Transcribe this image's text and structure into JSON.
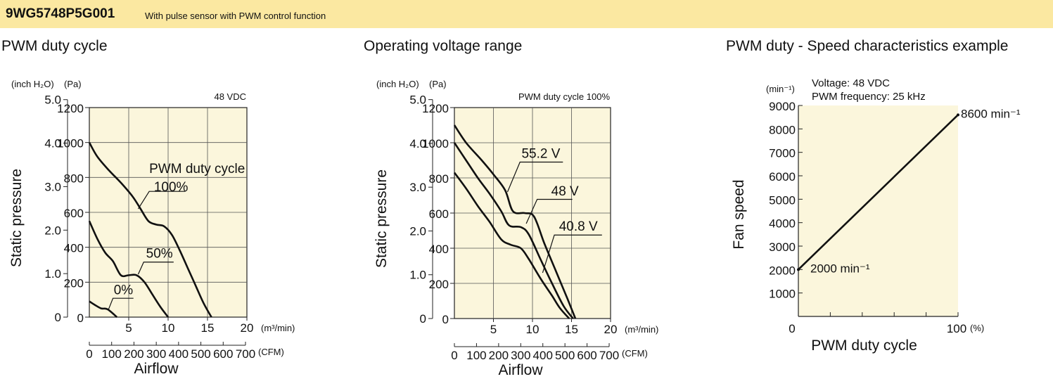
{
  "header": {
    "model": "9WG5748P5G001",
    "description": "With pulse sensor with PWM control function"
  },
  "chart_data": [
    {
      "type": "line",
      "title": "PWM duty cycle",
      "note": "48 VDC",
      "xlabel": "Airflow",
      "ylabel": "Static pressure",
      "x_unit_primary": "(m³/min)",
      "x_unit_secondary": "(CFM)",
      "y_unit_primary": "(Pa)",
      "y_unit_secondary": "(inch H₂O)",
      "xlim": [
        0,
        20
      ],
      "ylim": [
        0,
        1200
      ],
      "xticks": [
        "5",
        "10",
        "15",
        "20"
      ],
      "xticks_cfm": [
        "0",
        "100",
        "200",
        "300",
        "400",
        "500",
        "600",
        "700"
      ],
      "yticks": [
        "0",
        "200",
        "400",
        "600",
        "800",
        "1000",
        "1200"
      ],
      "yticks_inch": [
        "0",
        "1.0",
        "2.0",
        "3.0",
        "4.0",
        "5.0"
      ],
      "series_label": "PWM duty cycle",
      "series": [
        {
          "name": "100%",
          "x": [
            0,
            1,
            2.5,
            4,
            5.5,
            6.5,
            7.5,
            8.5,
            9.5,
            10.5,
            11.5,
            12.5,
            13.5,
            14.5,
            15.5
          ],
          "y": [
            1000,
            920,
            840,
            770,
            690,
            620,
            550,
            530,
            520,
            470,
            380,
            280,
            180,
            80,
            0
          ]
        },
        {
          "name": "50%",
          "x": [
            0,
            1,
            2,
            3,
            4,
            5,
            6,
            7,
            8,
            9,
            10
          ],
          "y": [
            550,
            450,
            370,
            320,
            240,
            240,
            240,
            200,
            130,
            60,
            0
          ]
        },
        {
          "name": "0%",
          "x": [
            0,
            0.7,
            1.5,
            2.3,
            3.5
          ],
          "y": [
            90,
            70,
            50,
            45,
            0
          ]
        }
      ]
    },
    {
      "type": "line",
      "title": "Operating voltage range",
      "note": "PWM duty cycle 100%",
      "xlabel": "Airflow",
      "ylabel": "Static pressure",
      "x_unit_primary": "(m³/min)",
      "x_unit_secondary": "(CFM)",
      "y_unit_primary": "(Pa)",
      "y_unit_secondary": "(inch H₂O)",
      "xlim": [
        0,
        20
      ],
      "ylim": [
        0,
        1200
      ],
      "xticks": [
        "5",
        "10",
        "15",
        "20"
      ],
      "xticks_cfm": [
        "0",
        "100",
        "200",
        "300",
        "400",
        "500",
        "600",
        "700"
      ],
      "yticks": [
        "0",
        "200",
        "400",
        "600",
        "800",
        "1000",
        "1200"
      ],
      "yticks_inch": [
        "0",
        "1.0",
        "2.0",
        "3.0",
        "4.0",
        "5.0"
      ],
      "series": [
        {
          "name": "55.2 V",
          "x": [
            0,
            1.5,
            3.5,
            5,
            6.5,
            7.5,
            9,
            10.2,
            11.5,
            13,
            14.5,
            15.5
          ],
          "y": [
            1100,
            1000,
            900,
            820,
            730,
            610,
            600,
            580,
            430,
            270,
            110,
            0
          ]
        },
        {
          "name": "48 V",
          "x": [
            0,
            1.5,
            3,
            4.5,
            6,
            7,
            8.5,
            9.5,
            11,
            12.5,
            14,
            15.2
          ],
          "y": [
            1000,
            900,
            800,
            710,
            610,
            530,
            520,
            480,
            340,
            200,
            70,
            0
          ]
        },
        {
          "name": "40.8 V",
          "x": [
            0,
            1.5,
            3,
            4.5,
            6,
            7.2,
            8.5,
            9.5,
            11,
            12.5,
            13.5,
            14.7
          ],
          "y": [
            830,
            740,
            640,
            550,
            450,
            420,
            400,
            340,
            230,
            130,
            60,
            0
          ]
        }
      ]
    },
    {
      "type": "line",
      "title": "PWM duty - Speed characteristics example",
      "note_lines": [
        "Voltage: 48 VDC",
        "PWM frequency: 25 kHz"
      ],
      "xlabel": "PWM duty cycle",
      "ylabel": "Fan speed",
      "x_unit": "(%)",
      "y_unit": "(min⁻¹)",
      "xlim": [
        0,
        100
      ],
      "ylim": [
        0,
        9000
      ],
      "xticks": [
        "0",
        "100"
      ],
      "yticks": [
        "1000",
        "2000",
        "3000",
        "4000",
        "5000",
        "6000",
        "7000",
        "8000",
        "9000"
      ],
      "series": [
        {
          "name": "",
          "x": [
            0,
            100
          ],
          "y": [
            2000,
            8600
          ]
        }
      ],
      "annotations": [
        "2000 min⁻¹",
        "8600 min⁻¹"
      ]
    }
  ]
}
